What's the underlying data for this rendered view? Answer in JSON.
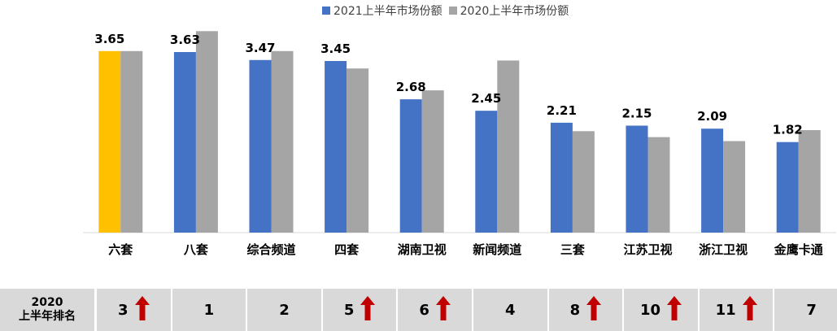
{
  "chart_data": {
    "type": "bar",
    "categories": [
      "六套",
      "八套",
      "综合频道",
      "四套",
      "湖南卫视",
      "新闻频道",
      "三套",
      "江苏卫视",
      "浙江卫视",
      "金鹰卡通"
    ],
    "series": [
      {
        "name": "2021上半年市场份额",
        "values": [
          3.65,
          3.63,
          3.47,
          3.45,
          2.68,
          2.45,
          2.21,
          2.15,
          2.09,
          1.82
        ],
        "color": "#4472c4"
      },
      {
        "name": "2020上半年市场份额",
        "values": [
          3.65,
          4.05,
          3.65,
          3.3,
          2.86,
          3.46,
          2.04,
          1.92,
          1.84,
          2.06
        ],
        "color": "#a5a5a5"
      }
    ],
    "highlight": {
      "category_index": 0,
      "series_index": 0,
      "color": "#ffc000"
    },
    "data_labels": [
      "3.65",
      "3.63",
      "3.47",
      "3.45",
      "2.68",
      "2.45",
      "2.21",
      "2.15",
      "2.09",
      "1.82"
    ],
    "ylim": [
      0,
      4.35
    ],
    "legend_position": "top-center",
    "grid": false
  },
  "rank_table": {
    "header_line1": "2020",
    "header_line2": "上半年排名",
    "ranks": [
      "3",
      "1",
      "2",
      "5",
      "6",
      "4",
      "8",
      "10",
      "11",
      "7"
    ],
    "up_arrow": [
      true,
      false,
      false,
      true,
      true,
      false,
      true,
      true,
      true,
      false
    ],
    "arrow_icon": "up-arrow-icon",
    "arrow_color": "#c00000"
  }
}
